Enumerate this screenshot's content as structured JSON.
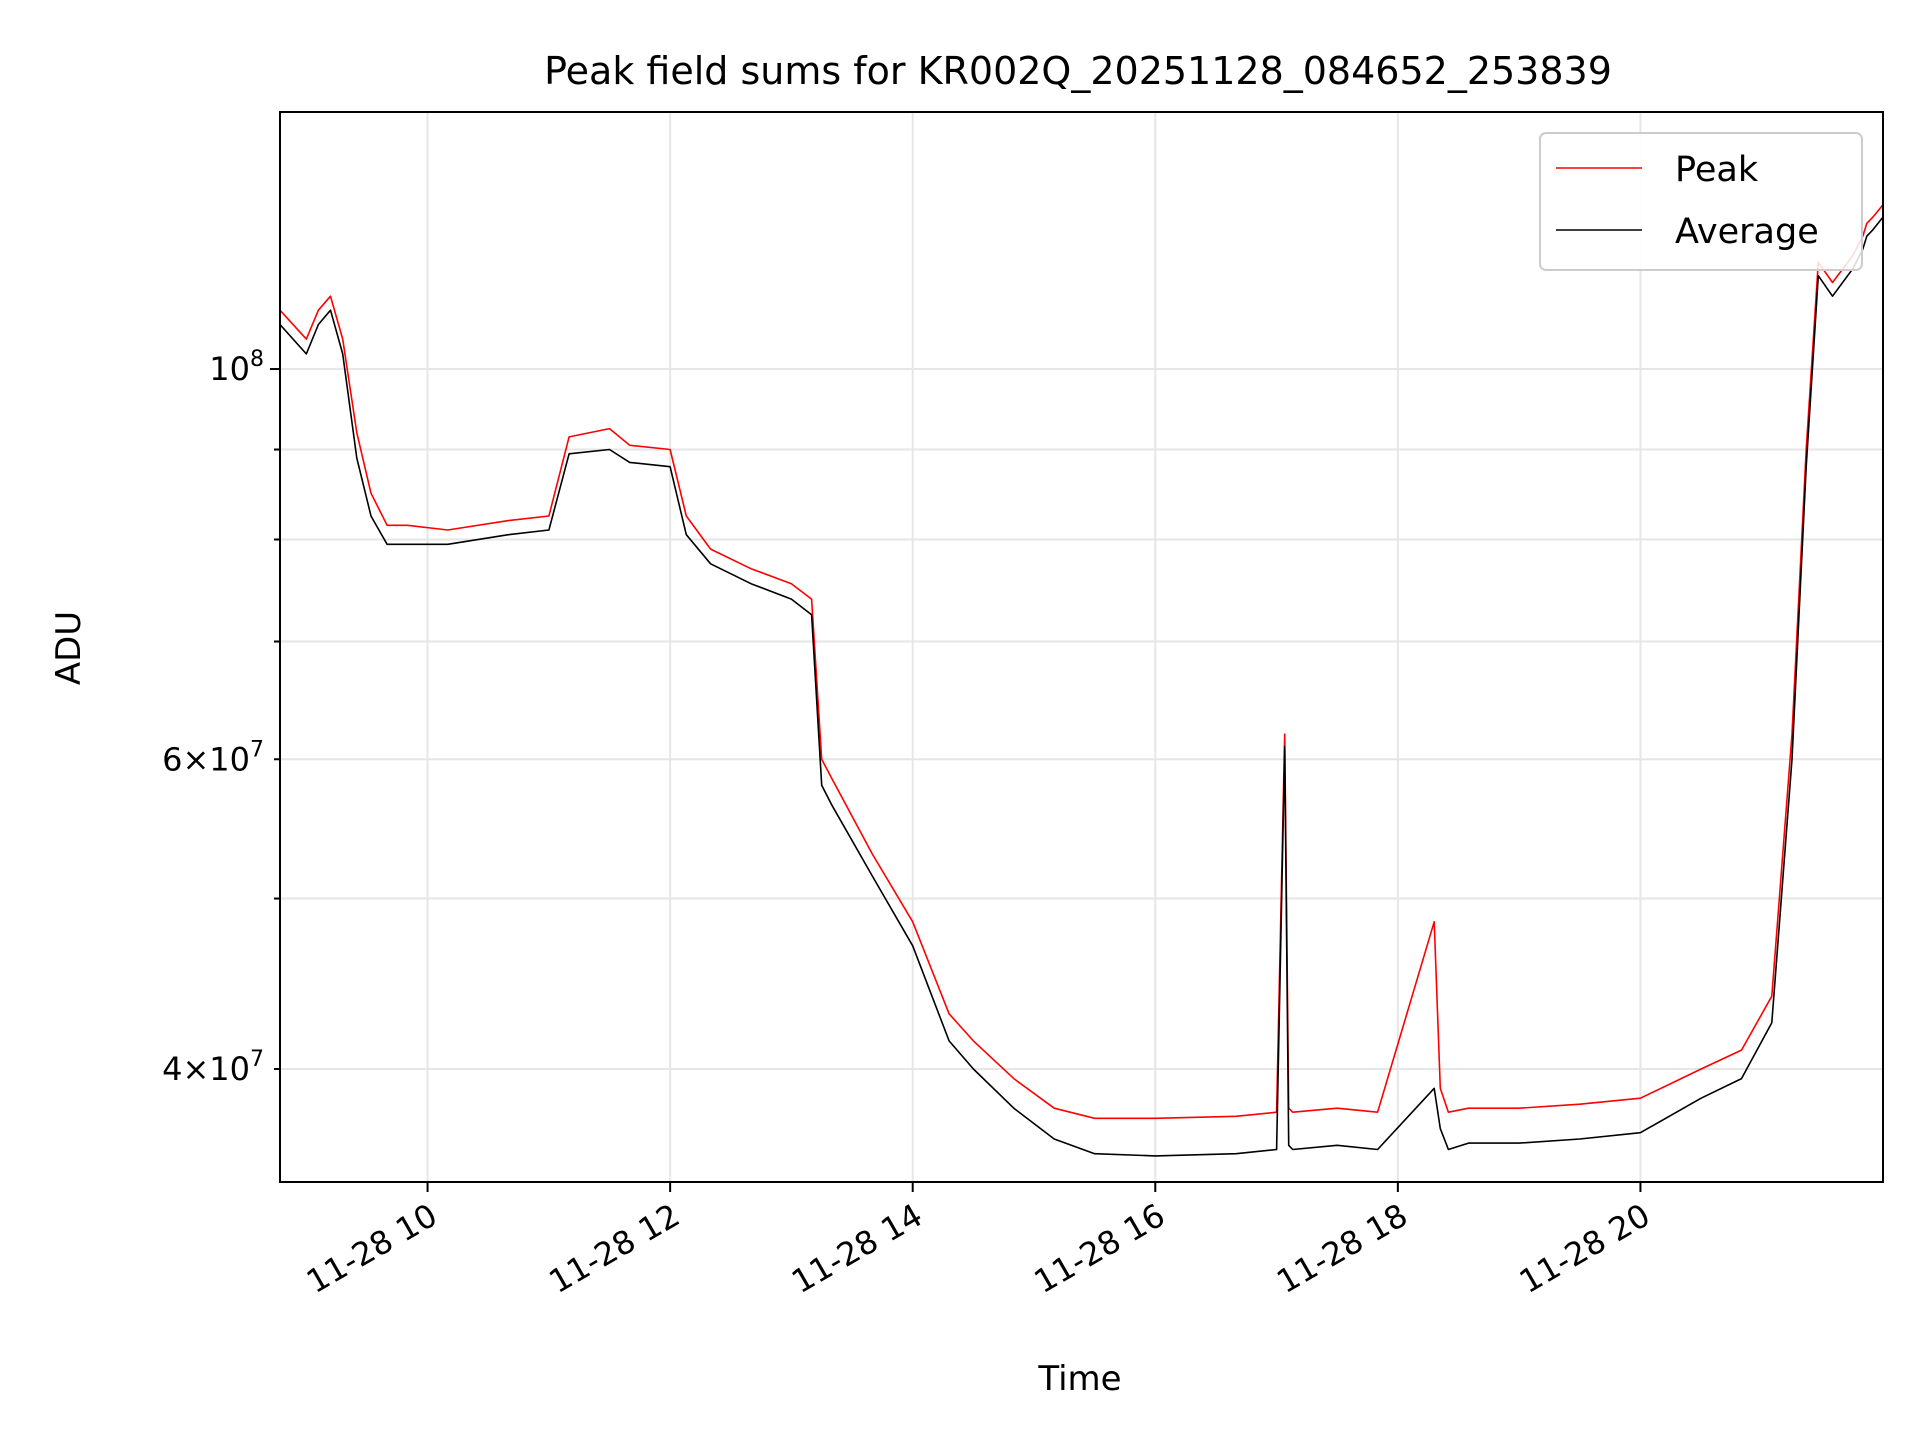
{
  "chart_data": {
    "type": "line",
    "title": "Peak field sums for KR002Q_20251128_084652_253839",
    "xlabel": "Time",
    "ylabel": "ADU",
    "yscale": "log",
    "xlim": [
      "2025-11-28 08:47",
      "2025-11-28 22:00"
    ],
    "ylim": [
      34500000,
      140000000
    ],
    "grid": true,
    "legend_location": "top-right",
    "x_tick_labels": [
      "11-28 10",
      "11-28 12",
      "11-28 14",
      "11-28 16",
      "11-28 18",
      "11-28 20"
    ],
    "x_ticks": [
      "2025-11-28 10:00",
      "2025-11-28 12:00",
      "2025-11-28 14:00",
      "2025-11-28 16:00",
      "2025-11-28 18:00",
      "2025-11-28 20:00"
    ],
    "y_major_ticks": [
      {
        "value": 100000000,
        "base": "10",
        "exp": "8"
      }
    ],
    "y_minor_ticks": [
      {
        "value": 40000000,
        "base": "4×10",
        "exp": "7"
      },
      {
        "value": 60000000,
        "base": "6×10",
        "exp": "7"
      }
    ],
    "y_minor_unlabeled": [
      50000000,
      70000000,
      80000000,
      90000000
    ],
    "colors": {
      "Peak": "#ff0000",
      "Average": "#000000"
    },
    "series": [
      {
        "name": "Peak",
        "x": [
          "2025-11-28 08:47",
          "2025-11-28 09:00",
          "2025-11-28 09:06",
          "2025-11-28 09:12",
          "2025-11-28 09:18",
          "2025-11-28 09:25",
          "2025-11-28 09:32",
          "2025-11-28 09:40",
          "2025-11-28 09:50",
          "2025-11-28 10:10",
          "2025-11-28 10:40",
          "2025-11-28 11:00",
          "2025-11-28 11:10",
          "2025-11-28 11:30",
          "2025-11-28 11:40",
          "2025-11-28 12:00",
          "2025-11-28 12:08",
          "2025-11-28 12:20",
          "2025-11-28 12:40",
          "2025-11-28 13:00",
          "2025-11-28 13:10",
          "2025-11-28 13:15",
          "2025-11-28 13:20",
          "2025-11-28 13:40",
          "2025-11-28 14:00",
          "2025-11-28 14:18",
          "2025-11-28 14:30",
          "2025-11-28 14:50",
          "2025-11-28 15:10",
          "2025-11-28 15:30",
          "2025-11-28 16:00",
          "2025-11-28 16:40",
          "2025-11-28 17:00",
          "2025-11-28 17:04",
          "2025-11-28 17:06",
          "2025-11-28 17:08",
          "2025-11-28 17:30",
          "2025-11-28 17:50",
          "2025-11-28 18:18",
          "2025-11-28 18:21",
          "2025-11-28 18:25",
          "2025-11-28 18:35",
          "2025-11-28 19:00",
          "2025-11-28 19:30",
          "2025-11-28 20:00",
          "2025-11-28 20:30",
          "2025-11-28 20:50",
          "2025-11-28 21:05",
          "2025-11-28 21:15",
          "2025-11-28 21:22",
          "2025-11-28 21:28",
          "2025-11-28 21:35",
          "2025-11-28 21:45",
          "2025-11-28 21:50",
          "2025-11-28 21:52",
          "2025-11-28 21:55",
          "2025-11-28 22:00"
        ],
        "y": [
          108000000,
          104000000,
          108000000,
          110000000,
          104000000,
          92000000,
          85000000,
          81500000,
          81500000,
          81000000,
          82000000,
          82500000,
          91500000,
          92500000,
          90500000,
          90000000,
          82500000,
          79000000,
          77000000,
          75500000,
          74000000,
          60000000,
          58500000,
          53000000,
          48500000,
          43000000,
          41500000,
          39500000,
          38000000,
          37500000,
          37500000,
          37600000,
          37800000,
          62000000,
          38000000,
          37800000,
          38000000,
          37800000,
          48500000,
          39000000,
          37800000,
          38000000,
          38000000,
          38200000,
          38500000,
          40000000,
          41000000,
          44000000,
          62000000,
          90000000,
          115000000,
          112000000,
          116000000,
          119000000,
          121000000,
          122000000,
          124000000
        ]
      },
      {
        "name": "Average",
        "x": [
          "2025-11-28 08:47",
          "2025-11-28 09:00",
          "2025-11-28 09:06",
          "2025-11-28 09:12",
          "2025-11-28 09:18",
          "2025-11-28 09:25",
          "2025-11-28 09:32",
          "2025-11-28 09:40",
          "2025-11-28 09:50",
          "2025-11-28 10:10",
          "2025-11-28 10:40",
          "2025-11-28 11:00",
          "2025-11-28 11:10",
          "2025-11-28 11:30",
          "2025-11-28 11:40",
          "2025-11-28 12:00",
          "2025-11-28 12:08",
          "2025-11-28 12:20",
          "2025-11-28 12:40",
          "2025-11-28 13:00",
          "2025-11-28 13:10",
          "2025-11-28 13:15",
          "2025-11-28 13:20",
          "2025-11-28 13:40",
          "2025-11-28 14:00",
          "2025-11-28 14:18",
          "2025-11-28 14:30",
          "2025-11-28 14:50",
          "2025-11-28 15:10",
          "2025-11-28 15:30",
          "2025-11-28 16:00",
          "2025-11-28 16:40",
          "2025-11-28 17:00",
          "2025-11-28 17:04",
          "2025-11-28 17:06",
          "2025-11-28 17:08",
          "2025-11-28 17:30",
          "2025-11-28 17:50",
          "2025-11-28 18:18",
          "2025-11-28 18:21",
          "2025-11-28 18:25",
          "2025-11-28 18:35",
          "2025-11-28 19:00",
          "2025-11-28 19:30",
          "2025-11-28 20:00",
          "2025-11-28 20:30",
          "2025-11-28 20:50",
          "2025-11-28 21:05",
          "2025-11-28 21:15",
          "2025-11-28 21:22",
          "2025-11-28 21:28",
          "2025-11-28 21:35",
          "2025-11-28 21:45",
          "2025-11-28 21:50",
          "2025-11-28 21:52",
          "2025-11-28 21:55",
          "2025-11-28 22:00"
        ],
        "y": [
          106000000,
          102000000,
          106000000,
          108000000,
          102000000,
          89000000,
          82500000,
          79500000,
          79500000,
          79500000,
          80500000,
          81000000,
          89500000,
          90000000,
          88500000,
          88000000,
          80500000,
          77500000,
          75500000,
          74000000,
          72500000,
          58000000,
          56500000,
          51500000,
          47000000,
          41500000,
          40000000,
          38000000,
          36500000,
          35800000,
          35700000,
          35800000,
          36000000,
          61000000,
          36200000,
          36000000,
          36200000,
          36000000,
          39000000,
          37000000,
          36000000,
          36300000,
          36300000,
          36500000,
          36800000,
          38500000,
          39500000,
          42500000,
          60000000,
          88000000,
          113000000,
          110000000,
          114000000,
          117000000,
          119000000,
          120000000,
          122000000
        ]
      }
    ]
  }
}
